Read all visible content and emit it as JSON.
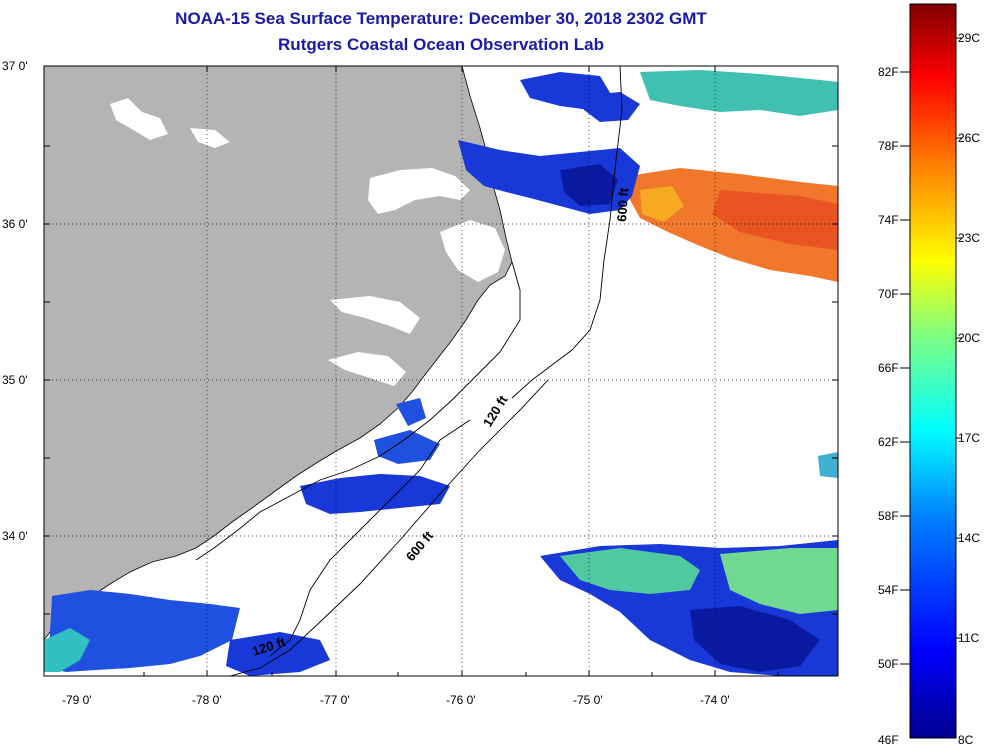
{
  "title": "NOAA-15 Sea Surface Temperature:  December 30, 2018 2302 GMT",
  "subtitle": "Rutgers Coastal Ocean Observation Lab",
  "axes": {
    "lat_labels": [
      "37 0'",
      "36 0'",
      "35 0'",
      "34 0'"
    ],
    "lon_labels": [
      "-79 0'",
      "-78 0'",
      "-77 0'",
      "-76 0'",
      "-75 0'",
      "-74 0'"
    ]
  },
  "contours": {
    "labels": [
      "600 ft",
      "120 ft",
      "600 ft",
      "120 ft"
    ]
  },
  "colorbar": {
    "fahrenheit": [
      "82F",
      "78F",
      "74F",
      "70F",
      "66F",
      "62F",
      "58F",
      "54F",
      "50F",
      "46F"
    ],
    "celsius": [
      "29C",
      "26C",
      "23C",
      "20C",
      "17C",
      "14C",
      "11C",
      "8C"
    ],
    "range_f": [
      46,
      84
    ],
    "colors": [
      "#00008f",
      "#0000ff",
      "#0080ff",
      "#00ffff",
      "#80ff80",
      "#ffff00",
      "#ff8000",
      "#ff0000",
      "#800000"
    ]
  },
  "colors": {
    "title": "#1a1aa8",
    "land": "#b4b4b4",
    "cold_water": "#1030d0",
    "warm_water": "#f07020"
  }
}
